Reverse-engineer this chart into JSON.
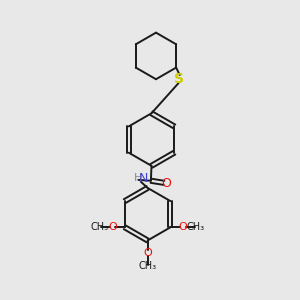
{
  "background_color": "#e8e8e8",
  "bond_color": "#1a1a1a",
  "S_color": "#cccc00",
  "N_color": "#4040cc",
  "O_color": "#ee1111",
  "H_color": "#888888",
  "line_width": 1.4,
  "font_size": 8,
  "fig_size": [
    3.0,
    3.0
  ],
  "dpi": 100,
  "xlim": [
    0,
    10
  ],
  "ylim": [
    0,
    10
  ]
}
